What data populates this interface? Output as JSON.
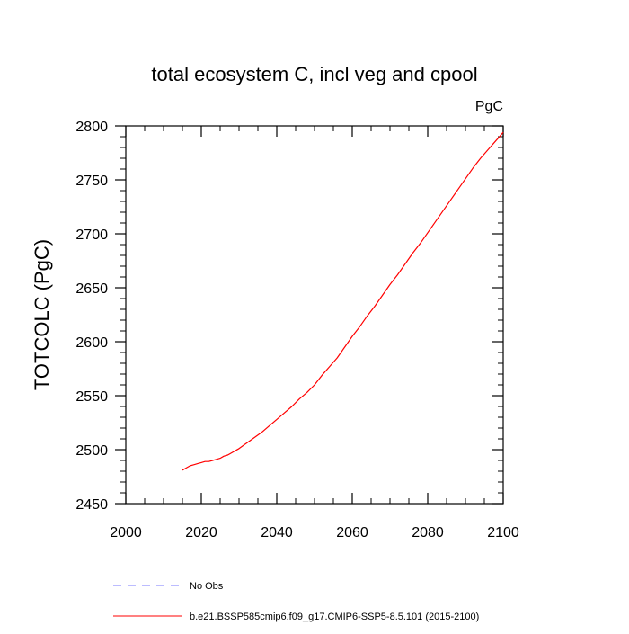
{
  "chart_data": {
    "type": "line",
    "title": "total ecosystem C, incl veg and cpool",
    "units_label": "PgC",
    "xlabel": "",
    "ylabel": "TOTCOLC  (PgC)",
    "xlim": [
      2000,
      2100
    ],
    "ylim": [
      2450,
      2800
    ],
    "x_ticks": [
      2000,
      2020,
      2040,
      2060,
      2080,
      2100
    ],
    "y_ticks": [
      2450,
      2500,
      2550,
      2600,
      2650,
      2700,
      2750,
      2800
    ],
    "x_tick_labels": [
      "2000",
      "2020",
      "2040",
      "2060",
      "2080",
      "2100"
    ],
    "y_tick_labels": [
      "2450",
      "2500",
      "2550",
      "2600",
      "2650",
      "2700",
      "2750",
      "2800"
    ],
    "grid": false,
    "series": [
      {
        "name": "b.e21.BSSP585cmip6.f09_g17.CMIP6-SSP5-8.5.101 (2015-2100)",
        "color": "#ff0000",
        "dash": "solid",
        "x": [
          2015,
          2016,
          2017,
          2018,
          2019,
          2020,
          2021,
          2022,
          2023,
          2024,
          2025,
          2026,
          2027,
          2028,
          2029,
          2030,
          2032,
          2034,
          2036,
          2038,
          2040,
          2042,
          2044,
          2046,
          2048,
          2050,
          2052,
          2054,
          2056,
          2058,
          2060,
          2062,
          2064,
          2066,
          2068,
          2070,
          2072,
          2074,
          2076,
          2078,
          2080,
          2082,
          2084,
          2086,
          2088,
          2090,
          2092,
          2094,
          2096,
          2098,
          2100
        ],
        "y": [
          2481,
          2483,
          2485,
          2486,
          2487,
          2488,
          2489,
          2489,
          2490,
          2491,
          2492,
          2494,
          2495,
          2497,
          2499,
          2501,
          2506,
          2511,
          2516,
          2522,
          2528,
          2534,
          2540,
          2547,
          2553,
          2560,
          2569,
          2577,
          2585,
          2595,
          2605,
          2614,
          2624,
          2633,
          2643,
          2653,
          2662,
          2672,
          2682,
          2691,
          2701,
          2711,
          2721,
          2731,
          2741,
          2751,
          2761,
          2770,
          2778,
          2786,
          2794
        ]
      }
    ],
    "legend": [
      {
        "label": "No Obs",
        "color": "#7a7aff",
        "dash": "dashed"
      },
      {
        "label": "b.e21.BSSP585cmip6.f09_g17.CMIP6-SSP5-8.5.101 (2015-2100)",
        "color": "#ff0000",
        "dash": "solid"
      }
    ],
    "legend_position": "bottom-left"
  }
}
